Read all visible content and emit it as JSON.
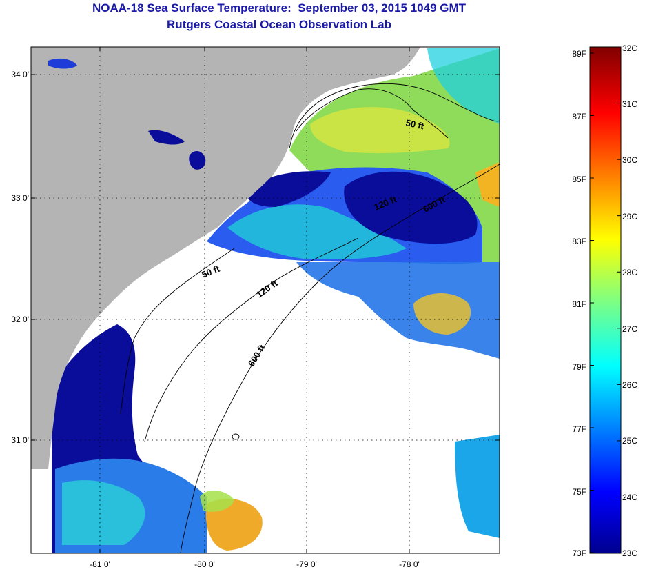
{
  "title_line1": "NOAA-18 Sea Surface Temperature:  September 03, 2015 1049 GMT",
  "title_line2": "Rutgers Coastal Ocean Observation Lab",
  "map": {
    "longitude_labels": [
      "-81 0'",
      "-80 0'",
      "-79 0'",
      "-78 0'"
    ],
    "latitude_labels": [
      "34 0'",
      "33 0'",
      "32 0'",
      "31 0'"
    ],
    "isobath_labels": [
      "50 ft",
      "120 ft",
      "600 ft",
      "50 ft",
      "120 ft",
      "600 ft"
    ],
    "colors": {
      "land": "#b4b4b4",
      "cloud": "#ffffff",
      "sst_cold": "#00008f",
      "sst_warm": "#7f0000"
    }
  },
  "colorbar": {
    "fahrenheit_labels": [
      "89F",
      "87F",
      "85F",
      "83F",
      "81F",
      "79F",
      "77F",
      "75F",
      "73F"
    ],
    "celsius_labels": [
      "32C",
      "31C",
      "30C",
      "29C",
      "28C",
      "27C",
      "26C",
      "25C",
      "24C",
      "23C"
    ],
    "min_c": 23,
    "max_c": 32
  }
}
